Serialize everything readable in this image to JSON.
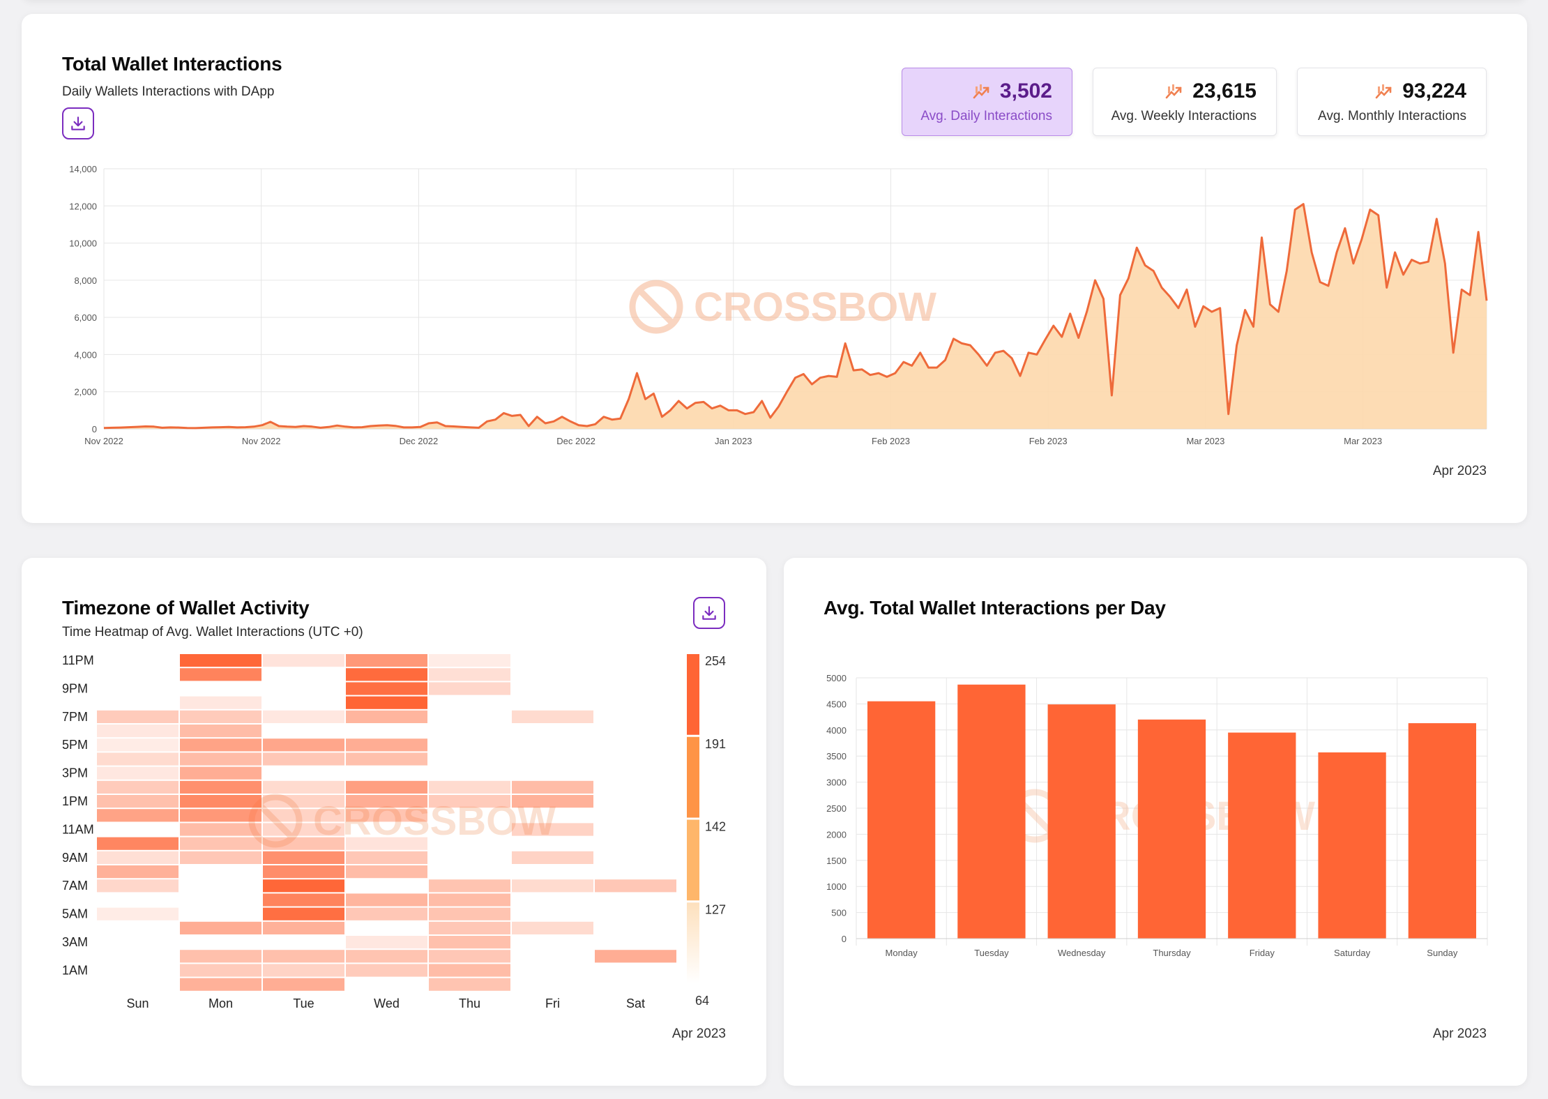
{
  "total": {
    "title": "Total Wallet Interactions",
    "subtitle": "Daily Wallets Interactions with DApp",
    "stats": [
      {
        "value": "3,502",
        "label": "Avg. Daily Interactions",
        "active": true
      },
      {
        "value": "23,615",
        "label": "Avg. Weekly Interactions",
        "active": false
      },
      {
        "value": "93,224",
        "label": "Avg. Monthly Interactions",
        "active": false
      }
    ],
    "period": "Apr 2023"
  },
  "timezone": {
    "title": "Timezone of Wallet Activity",
    "subtitle": "Time Heatmap of Avg. Wallet Interactions (UTC +0)",
    "period": "Apr 2023"
  },
  "perday": {
    "title": "Avg. Total Wallet Interactions per Day",
    "period": "Apr 2023"
  },
  "watermark": "CROSSBOW",
  "colors": {
    "accent_purple": "#7b2cbf",
    "line": "#ee6a3a",
    "area": "#fdd9ae",
    "bar": "#ff6535",
    "heat_max": "#ff6535"
  },
  "chart_data": [
    {
      "id": "total-line",
      "type": "area",
      "ylim": [
        0,
        14000
      ],
      "yticks": [
        "0",
        "2,000",
        "4,000",
        "6,000",
        "8,000",
        "10,000",
        "12,000",
        "14,000"
      ],
      "xtick_labels": [
        "Nov 2022",
        "Nov 2022",
        "Dec 2022",
        "Dec 2022",
        "Jan 2023",
        "Feb 2023",
        "Feb 2023",
        "Mar 2023",
        "Mar 2023"
      ],
      "grid": true,
      "values": [
        50,
        60,
        70,
        90,
        110,
        130,
        120,
        60,
        80,
        70,
        50,
        40,
        60,
        80,
        90,
        100,
        80,
        90,
        120,
        200,
        380,
        150,
        120,
        100,
        150,
        120,
        60,
        100,
        180,
        120,
        80,
        90,
        150,
        180,
        200,
        160,
        80,
        80,
        100,
        300,
        350,
        150,
        130,
        100,
        80,
        60,
        400,
        500,
        850,
        700,
        750,
        150,
        650,
        300,
        400,
        650,
        400,
        200,
        150,
        250,
        650,
        500,
        550,
        1600,
        3000,
        1600,
        1900,
        650,
        1000,
        1500,
        1100,
        1400,
        1450,
        1100,
        1250,
        1000,
        1000,
        800,
        900,
        1500,
        600,
        1200,
        2000,
        2750,
        2950,
        2400,
        2750,
        2850,
        2800,
        4600,
        3150,
        3200,
        2900,
        3000,
        2800,
        3000,
        3600,
        3400,
        4100,
        3300,
        3300,
        3700,
        4850,
        4600,
        4500,
        4000,
        3400,
        4100,
        4200,
        3800,
        2850,
        4100,
        4000,
        4800,
        5550,
        4950,
        6200,
        4900,
        6300,
        8000,
        7000,
        1800,
        7200,
        8100,
        9750,
        8800,
        8500,
        7600,
        7100,
        6500,
        7500,
        5500,
        6600,
        6300,
        6500,
        800,
        4500,
        6400,
        5500,
        10300,
        6700,
        6300,
        8500,
        11800,
        12100,
        9500,
        7900,
        7700,
        9500,
        10800,
        8900,
        10200,
        11800,
        11500,
        7600,
        9500,
        8300,
        9100,
        8900,
        9000,
        11300,
        8900,
        4100,
        7500,
        7200,
        10600,
        6900
      ]
    },
    {
      "id": "heatmap",
      "type": "heatmap",
      "x": [
        "Sun",
        "Mon",
        "Tue",
        "Wed",
        "Thu",
        "Fri",
        "Sat"
      ],
      "ytick_labels": [
        "11PM",
        "9PM",
        "7PM",
        "5PM",
        "3PM",
        "1PM",
        "11AM",
        "9AM",
        "7AM",
        "5AM",
        "3AM",
        "1AM"
      ],
      "rows_top_to_bottom": [
        "11PM",
        "10PM",
        "9PM",
        "8PM",
        "7PM",
        "6PM",
        "5PM",
        "4PM",
        "3PM",
        "2PM",
        "1PM",
        "12PM",
        "11AM",
        "10AM",
        "9AM",
        "8AM",
        "7AM",
        "6AM",
        "5AM",
        "4AM",
        "3AM",
        "2AM",
        "1AM",
        "0AM"
      ],
      "scale": {
        "min": 64,
        "max": 254,
        "ticks": [
          254,
          191,
          142,
          127,
          64
        ]
      },
      "values": [
        [
          null,
          250,
          80,
          180,
          70,
          null,
          null
        ],
        [
          null,
          210,
          null,
          245,
          85,
          null,
          null
        ],
        [
          null,
          null,
          null,
          240,
          95,
          null,
          null
        ],
        [
          null,
          75,
          null,
          254,
          null,
          null,
          null
        ],
        [
          110,
          110,
          75,
          140,
          null,
          90,
          null
        ],
        [
          75,
          130,
          null,
          null,
          null,
          null,
          null
        ],
        [
          70,
          165,
          160,
          150,
          null,
          null,
          null
        ],
        [
          90,
          130,
          115,
          125,
          null,
          null,
          null
        ],
        [
          75,
          150,
          null,
          null,
          null,
          null,
          null
        ],
        [
          110,
          190,
          90,
          170,
          90,
          130,
          null
        ],
        [
          125,
          200,
          100,
          150,
          110,
          145,
          null
        ],
        [
          165,
          180,
          100,
          120,
          null,
          null,
          null
        ],
        [
          null,
          130,
          95,
          null,
          null,
          100,
          null
        ],
        [
          205,
          120,
          120,
          80,
          null,
          null,
          null
        ],
        [
          85,
          115,
          190,
          115,
          null,
          100,
          null
        ],
        [
          145,
          null,
          195,
          130,
          null,
          null,
          null
        ],
        [
          95,
          null,
          250,
          null,
          120,
          90,
          115
        ],
        [
          null,
          null,
          210,
          140,
          130,
          null,
          null
        ],
        [
          70,
          null,
          240,
          115,
          120,
          null,
          null
        ],
        [
          null,
          150,
          145,
          null,
          115,
          90,
          null
        ],
        [
          null,
          null,
          null,
          75,
          125,
          null,
          null
        ],
        [
          null,
          125,
          125,
          120,
          115,
          null,
          null
        ],
        [
          null,
          110,
          100,
          110,
          130,
          null,
          null
        ],
        [
          null,
          145,
          150,
          null,
          120,
          null,
          null
        ]
      ],
      "extra_cells": [
        {
          "row": 21,
          "col": 6,
          "value": 150
        }
      ]
    },
    {
      "id": "perday-bar",
      "type": "bar",
      "categories": [
        "Monday",
        "Tuesday",
        "Wednesday",
        "Thursday",
        "Friday",
        "Saturday",
        "Sunday"
      ],
      "values": [
        4550,
        4870,
        4490,
        4200,
        3950,
        3570,
        4130
      ],
      "ylim": [
        0,
        5000
      ],
      "yticks": [
        0,
        500,
        1000,
        1500,
        2000,
        2500,
        3000,
        3500,
        4000,
        4500,
        5000
      ],
      "grid": true
    }
  ]
}
